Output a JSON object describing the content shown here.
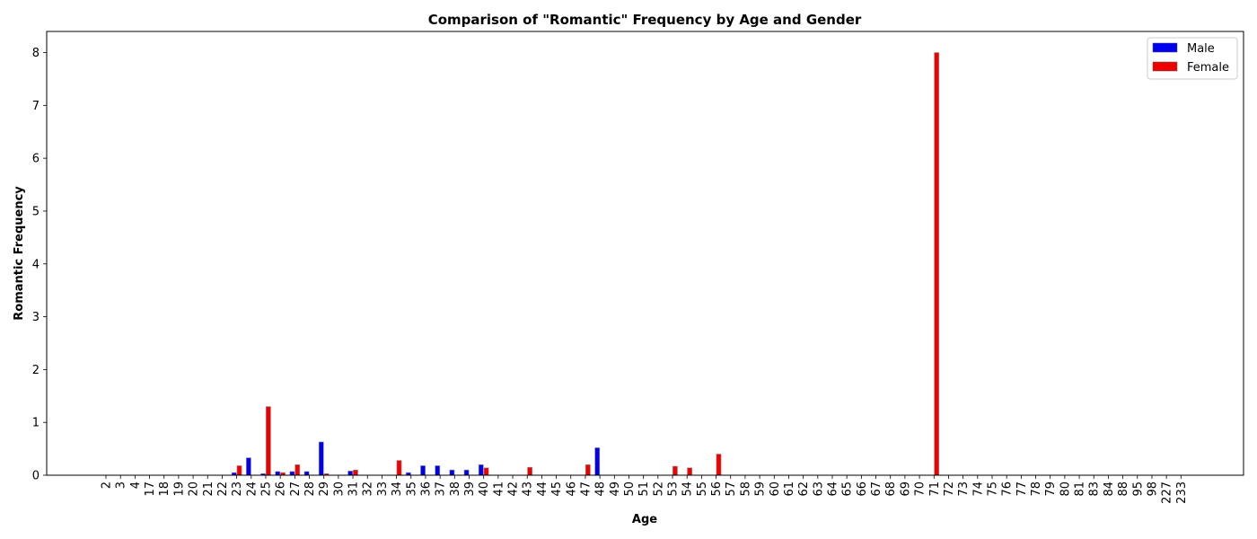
{
  "chart_data": {
    "type": "bar",
    "title": "Comparison of \"Romantic\" Frequency by Age and Gender",
    "xlabel": "Age",
    "ylabel": "Romantic Frequency",
    "ylim": [
      0,
      8.4
    ],
    "yticks": [
      "0",
      "1",
      "2",
      "3",
      "4",
      "5",
      "6",
      "7",
      "8"
    ],
    "grid": false,
    "legend_position": "top-right",
    "categories": [
      "2",
      "3",
      "4",
      "17",
      "18",
      "19",
      "20",
      "21",
      "22",
      "23",
      "24",
      "25",
      "26",
      "27",
      "28",
      "29",
      "30",
      "31",
      "32",
      "33",
      "34",
      "35",
      "36",
      "37",
      "38",
      "39",
      "40",
      "41",
      "42",
      "43",
      "44",
      "45",
      "46",
      "47",
      "48",
      "49",
      "50",
      "51",
      "52",
      "53",
      "54",
      "55",
      "56",
      "57",
      "58",
      "59",
      "60",
      "61",
      "62",
      "63",
      "64",
      "65",
      "66",
      "67",
      "68",
      "69",
      "70",
      "71",
      "72",
      "73",
      "74",
      "75",
      "76",
      "77",
      "78",
      "79",
      "80",
      "81",
      "83",
      "84",
      "88",
      "95",
      "98",
      "227",
      "233"
    ],
    "series": [
      {
        "name": "Male",
        "color": "#0000ee",
        "values": [
          0,
          0,
          0,
          0,
          0,
          0,
          0,
          0,
          0,
          0.05,
          0.33,
          0.03,
          0.07,
          0.07,
          0.07,
          0.63,
          0,
          0.08,
          0,
          0,
          0,
          0.05,
          0.18,
          0.18,
          0.1,
          0.1,
          0.2,
          0,
          0,
          0,
          0,
          0,
          0,
          0,
          0.52,
          0,
          0,
          0,
          0,
          0,
          0,
          0,
          0,
          0,
          0,
          0,
          0,
          0,
          0,
          0,
          0,
          0,
          0,
          0,
          0,
          0,
          0,
          0,
          0,
          0,
          0,
          0,
          0,
          0,
          0,
          0,
          0,
          0,
          0,
          0,
          0,
          0,
          0,
          0,
          0
        ]
      },
      {
        "name": "Female",
        "color": "#ee0000",
        "values": [
          0,
          0,
          0,
          0,
          0,
          0,
          0,
          0,
          0,
          0.18,
          0,
          1.3,
          0.05,
          0.2,
          0,
          0.03,
          0,
          0.1,
          0,
          0,
          0.28,
          0,
          0,
          0,
          0,
          0,
          0.14,
          0,
          0,
          0.15,
          0,
          0,
          0,
          0.2,
          0,
          0,
          0,
          0,
          0,
          0.17,
          0.14,
          0,
          0.4,
          0,
          0,
          0,
          0,
          0,
          0,
          0,
          0,
          0,
          0,
          0,
          0,
          0,
          0,
          8,
          0,
          0,
          0,
          0,
          0,
          0,
          0,
          0,
          0,
          0,
          0,
          0,
          0,
          0,
          0,
          0,
          0
        ]
      }
    ]
  }
}
